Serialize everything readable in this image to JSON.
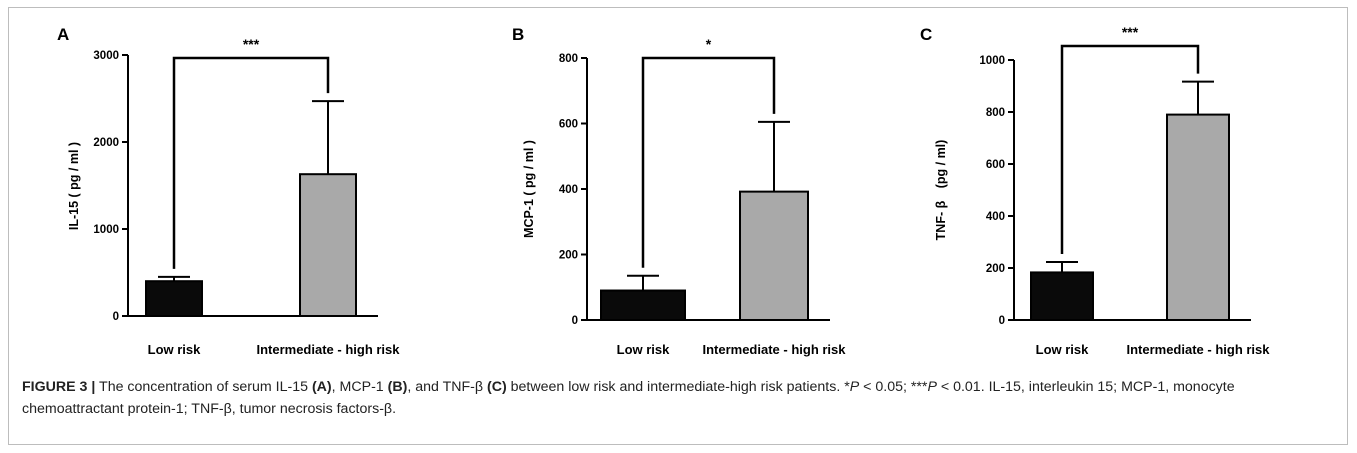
{
  "chart_data": [
    {
      "panel": "A",
      "type": "bar",
      "categories": [
        "Low risk",
        "Intermediate - high risk"
      ],
      "values": [
        400,
        1630
      ],
      "errors": [
        50,
        840
      ],
      "ylabel": "IL-15 ( pg / ml )",
      "ylim": [
        0,
        3000
      ],
      "yticks": [
        "0",
        "1000",
        "2000",
        "3000"
      ],
      "significance": "***",
      "colors": [
        "#0a0a0a",
        "#a9a9a9"
      ]
    },
    {
      "panel": "B",
      "type": "bar",
      "categories": [
        "Low risk",
        "Intermediate - high risk"
      ],
      "values": [
        90,
        392
      ],
      "errors": [
        45,
        213
      ],
      "ylabel": "MCP-1 ( pg / ml )",
      "ylim": [
        0,
        800
      ],
      "yticks": [
        "0",
        "200",
        "400",
        "600",
        "800"
      ],
      "significance": "*",
      "colors": [
        "#0a0a0a",
        "#a9a9a9"
      ]
    },
    {
      "panel": "C",
      "type": "bar",
      "categories": [
        "Low risk",
        "Intermediate - high risk"
      ],
      "values": [
        183,
        790
      ],
      "errors": [
        40,
        127
      ],
      "ylabel": "TNF- β　(pg / ml)",
      "ylim": [
        0,
        1000
      ],
      "yticks": [
        "0",
        "200",
        "400",
        "600",
        "800",
        "1000"
      ],
      "significance": "***",
      "colors": [
        "#0a0a0a",
        "#a9a9a9"
      ]
    }
  ],
  "caption": {
    "label": "FIGURE 3 |",
    "segments": [
      {
        "t": " The concentration of serum IL-15 ",
        "b": false
      },
      {
        "t": "(A)",
        "b": true
      },
      {
        "t": ", MCP-1 ",
        "b": false
      },
      {
        "t": "(B)",
        "b": true
      },
      {
        "t": ", and TNF-β ",
        "b": false
      },
      {
        "t": "(C)",
        "b": true
      },
      {
        "t": " between low risk and intermediate-high risk patients. *",
        "b": false
      },
      {
        "t": "P",
        "b": false,
        "i": true
      },
      {
        "t": " < 0.05; ***",
        "b": false
      },
      {
        "t": "P",
        "b": false,
        "i": true
      },
      {
        "t": " < 0.01. IL-15, interleukin 15; MCP-1, monocyte chemoattractant protein-1; TNF-β, tumor necrosis factors-β.",
        "b": false
      }
    ]
  }
}
